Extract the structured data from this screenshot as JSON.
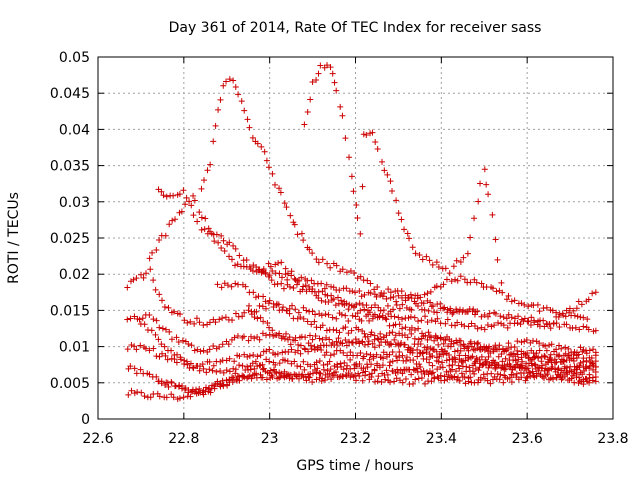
{
  "chart_data": {
    "type": "scatter",
    "title": "Day 361 of 2014, Rate Of TEC Index for receiver sass",
    "xlabel": "GPS time / hours",
    "ylabel": "ROTI / TECUs",
    "xlim": [
      22.6,
      23.8
    ],
    "ylim": [
      0,
      0.05
    ],
    "x_ticks": [
      22.6,
      22.8,
      23,
      23.2,
      23.4,
      23.6,
      23.8
    ],
    "x_tick_labels": [
      "22.6",
      "22.8",
      "23",
      "23.2",
      "23.4",
      "23.6",
      "23.8"
    ],
    "y_ticks": [
      0,
      0.005,
      0.01,
      0.015,
      0.02,
      0.025,
      0.03,
      0.035,
      0.04,
      0.045,
      0.05
    ],
    "y_tick_labels": [
      "0",
      "0.005",
      "0.01",
      "0.015",
      "0.02",
      "0.025",
      "0.03",
      "0.035",
      "0.04",
      "0.045",
      "0.05"
    ],
    "grid": true,
    "marker": "+",
    "series_color": "#cc0000",
    "tracks": [
      [
        22.67,
        0.0035,
        22.73,
        0.0032,
        22.8,
        0.003,
        22.85,
        0.0042,
        22.9,
        0.0052,
        22.95,
        0.0058,
        23.0,
        0.0055,
        23.1,
        0.006,
        23.2,
        0.0062,
        23.3,
        0.0065,
        23.4,
        0.006,
        23.5,
        0.0058,
        23.6,
        0.006,
        23.7,
        0.0058,
        23.76,
        0.0052
      ],
      [
        22.67,
        0.007,
        22.72,
        0.006,
        22.78,
        0.0045,
        22.84,
        0.0035,
        22.9,
        0.005,
        22.97,
        0.0065,
        23.05,
        0.0062,
        23.15,
        0.0068,
        23.25,
        0.0072,
        23.35,
        0.0068,
        23.45,
        0.007,
        23.55,
        0.0072,
        23.65,
        0.0075,
        23.76,
        0.0072
      ],
      [
        22.67,
        0.01,
        22.72,
        0.0095,
        22.77,
        0.0082,
        22.83,
        0.0072,
        22.9,
        0.0082,
        22.97,
        0.009,
        23.05,
        0.0095,
        23.15,
        0.0092,
        23.25,
        0.0088,
        23.35,
        0.009,
        23.45,
        0.0085,
        23.55,
        0.0082,
        23.65,
        0.0085,
        23.76,
        0.008
      ],
      [
        22.67,
        0.0135,
        22.72,
        0.0145,
        22.76,
        0.012,
        22.81,
        0.01,
        22.86,
        0.0095,
        22.92,
        0.011,
        23.0,
        0.0115,
        23.1,
        0.0112,
        23.2,
        0.0105,
        23.3,
        0.0102,
        23.4,
        0.0098,
        23.5,
        0.0095,
        23.6,
        0.0092,
        23.76,
        0.0088
      ],
      [
        22.67,
        0.0185,
        22.72,
        0.0205,
        22.75,
        0.016,
        22.8,
        0.0138,
        22.86,
        0.0132,
        22.92,
        0.0142,
        23.0,
        0.0158,
        23.1,
        0.0148,
        23.2,
        0.0138,
        23.3,
        0.0142,
        23.4,
        0.0135,
        23.5,
        0.0128,
        23.6,
        0.0132,
        23.7,
        0.0128,
        23.76,
        0.0122
      ],
      [
        22.7,
        0.0135,
        22.74,
        0.0108,
        22.8,
        0.0078,
        22.86,
        0.0065,
        22.93,
        0.0072,
        23.0,
        0.008,
        23.08,
        0.0076,
        23.18,
        0.0078,
        23.28,
        0.0082,
        23.38,
        0.0078,
        23.48,
        0.0075,
        23.58,
        0.0072,
        23.68,
        0.0068,
        23.76,
        0.0065
      ],
      [
        22.72,
        0.0225,
        22.75,
        0.025,
        22.78,
        0.028,
        22.82,
        0.0305,
        22.85,
        0.0275,
        22.88,
        0.024,
        22.92,
        0.0215,
        22.97,
        0.0205,
        23.05,
        0.0195,
        23.12,
        0.0185,
        23.2,
        0.0175,
        23.28,
        0.0165,
        23.36,
        0.0172,
        23.43,
        0.0195,
        23.5,
        0.0185,
        23.58,
        0.016,
        23.66,
        0.0148,
        23.74,
        0.0138
      ],
      [
        22.74,
        0.0318,
        22.76,
        0.031,
        22.8,
        0.0315,
        22.84,
        0.0265,
        22.9,
        0.0245,
        22.96,
        0.021,
        23.02,
        0.0185,
        23.1,
        0.0178,
        23.18,
        0.0158,
        23.26,
        0.0152,
        23.34,
        0.0155,
        23.42,
        0.0148,
        23.5,
        0.0145,
        23.58,
        0.0138,
        23.66,
        0.0135,
        23.76,
        0.0175
      ],
      [
        22.84,
        0.0322,
        22.86,
        0.0355,
        22.88,
        0.0428,
        22.9,
        0.047,
        22.92,
        0.0462,
        22.94,
        0.0425,
        22.96,
        0.0385,
        22.98,
        0.038,
        23.0,
        0.0345,
        23.02,
        0.0318,
        23.04,
        0.0295,
        23.06,
        0.0265,
        23.08,
        0.0245,
        23.1,
        0.0225,
        23.14,
        0.0212,
        23.18,
        0.0205,
        23.22,
        0.019,
        23.26,
        0.0175,
        23.3,
        0.0175,
        23.36,
        0.016,
        23.42,
        0.0152,
        23.48,
        0.0148
      ],
      [
        23.08,
        0.0405,
        23.1,
        0.0462,
        23.12,
        0.0485,
        23.14,
        0.0488,
        23.15,
        0.0468,
        23.17,
        0.0418,
        23.19,
        0.0338,
        23.2,
        0.0295,
        23.21,
        0.0255,
        23.22,
        0.0395,
        23.24,
        0.0398,
        23.26,
        0.0358,
        23.28,
        0.0325,
        23.3,
        0.0285,
        23.32,
        0.0255,
        23.34,
        0.023,
        23.38,
        0.0215,
        23.42,
        0.0205,
        23.46,
        0.0228,
        23.5,
        0.0345,
        23.51,
        0.0308,
        23.54,
        0.0188
      ],
      [
        22.95,
        0.0152,
        23.0,
        0.0125,
        23.05,
        0.0105,
        23.12,
        0.0098,
        23.2,
        0.0108,
        23.28,
        0.0118,
        23.36,
        0.0112,
        23.44,
        0.0105,
        23.52,
        0.0098,
        23.6,
        0.0105,
        23.68,
        0.0098,
        23.76,
        0.0092
      ],
      [
        22.74,
        0.0052,
        22.78,
        0.0045,
        22.82,
        0.0038,
        22.86,
        0.0045,
        22.92,
        0.0062,
        22.98,
        0.0072,
        23.04,
        0.0058,
        23.1,
        0.0052,
        23.18,
        0.0058,
        23.26,
        0.0055,
        23.34,
        0.0052,
        23.42,
        0.0055,
        23.5,
        0.0052,
        23.58,
        0.0055,
        23.66,
        0.0058,
        23.74,
        0.0052
      ],
      [
        22.98,
        0.0205,
        23.02,
        0.0218,
        23.06,
        0.0195,
        23.1,
        0.0172,
        23.16,
        0.0158,
        23.22,
        0.0148,
        23.28,
        0.0132,
        23.34,
        0.0122,
        23.4,
        0.0112,
        23.46,
        0.0102,
        23.52,
        0.0095,
        23.58,
        0.0088,
        23.64,
        0.0082,
        23.7,
        0.0078,
        23.76,
        0.0072
      ],
      [
        22.88,
        0.0182,
        22.92,
        0.0188,
        22.96,
        0.0172,
        23.0,
        0.0162,
        23.04,
        0.0148,
        23.08,
        0.0135,
        23.14,
        0.0125,
        23.2,
        0.0122,
        23.26,
        0.0112,
        23.32,
        0.0098,
        23.38,
        0.0092,
        23.44,
        0.0085,
        23.5,
        0.0078,
        23.56,
        0.0072,
        23.62,
        0.0068,
        23.7,
        0.0062,
        23.76,
        0.0058
      ]
    ]
  }
}
